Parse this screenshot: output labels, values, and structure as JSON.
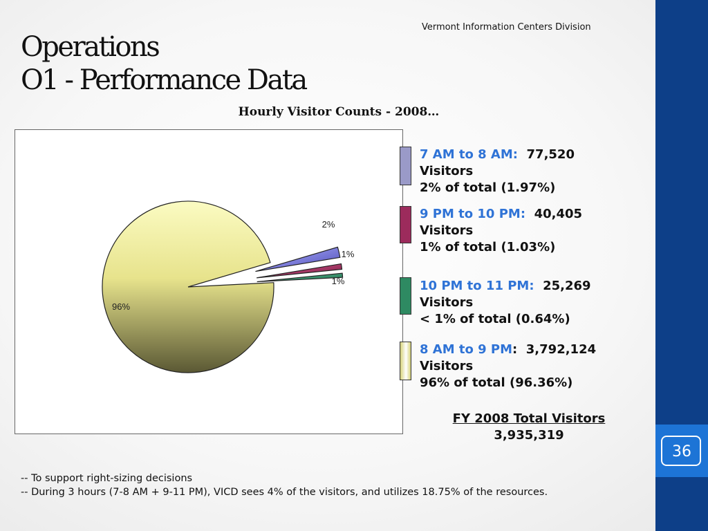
{
  "header": {
    "org": "Vermont Information Centers Division",
    "title_line1": "Operations",
    "title_line2": "O1 - Performance Data",
    "subtitle": "Hourly Visitor Counts - 2008…"
  },
  "chart_data": {
    "type": "pie",
    "slices": [
      {
        "label": "7 AM to 8 AM",
        "value": 77520,
        "percent_label": "2%",
        "color": "#7f7fe8"
      },
      {
        "label": "9 PM to 10 PM",
        "value": 40405,
        "percent_label": "1%",
        "color": "#b23a6a"
      },
      {
        "label": "10 PM to 11 PM",
        "value": 25269,
        "percent_label": "1%",
        "color": "#3d9e76"
      },
      {
        "label": "8 AM to 9 PM",
        "value": 3792124,
        "percent_label": "96%",
        "color": "#e6e38a"
      }
    ]
  },
  "legend": [
    {
      "label": "7 AM to 8 AM:",
      "value": "77,520",
      "line2": "Visitors",
      "line3": "2% of total (1.97%)",
      "color": "#9a9ac8"
    },
    {
      "label": "9 PM to 10 PM:",
      "value": "40,405",
      "line2": "Visitors",
      "line3": "1% of total (1.03%)",
      "color": "#9c2b5c"
    },
    {
      "label": "10 PM to 11 PM:",
      "value": "25,269",
      "line2": "Visitors",
      "line3": "< 1% of total (0.64%)",
      "color": "#2e8a62"
    },
    {
      "label": "8 AM to 9 PM",
      "sep": ":",
      "value": "3,792,124",
      "line2": "Visitors",
      "line3": "96% of total (96.36%)",
      "color": "#d6d27a"
    }
  ],
  "total": {
    "label": "FY 2008 Total Visitors",
    "value": "3,935,319"
  },
  "notes": {
    "line1": "-- To support right-sizing decisions",
    "line2": "-- During 3 hours (7-8 AM + 9-11 PM), VICD sees 4% of the visitors, and utilizes 18.75% of the resources."
  },
  "page_number": "36"
}
